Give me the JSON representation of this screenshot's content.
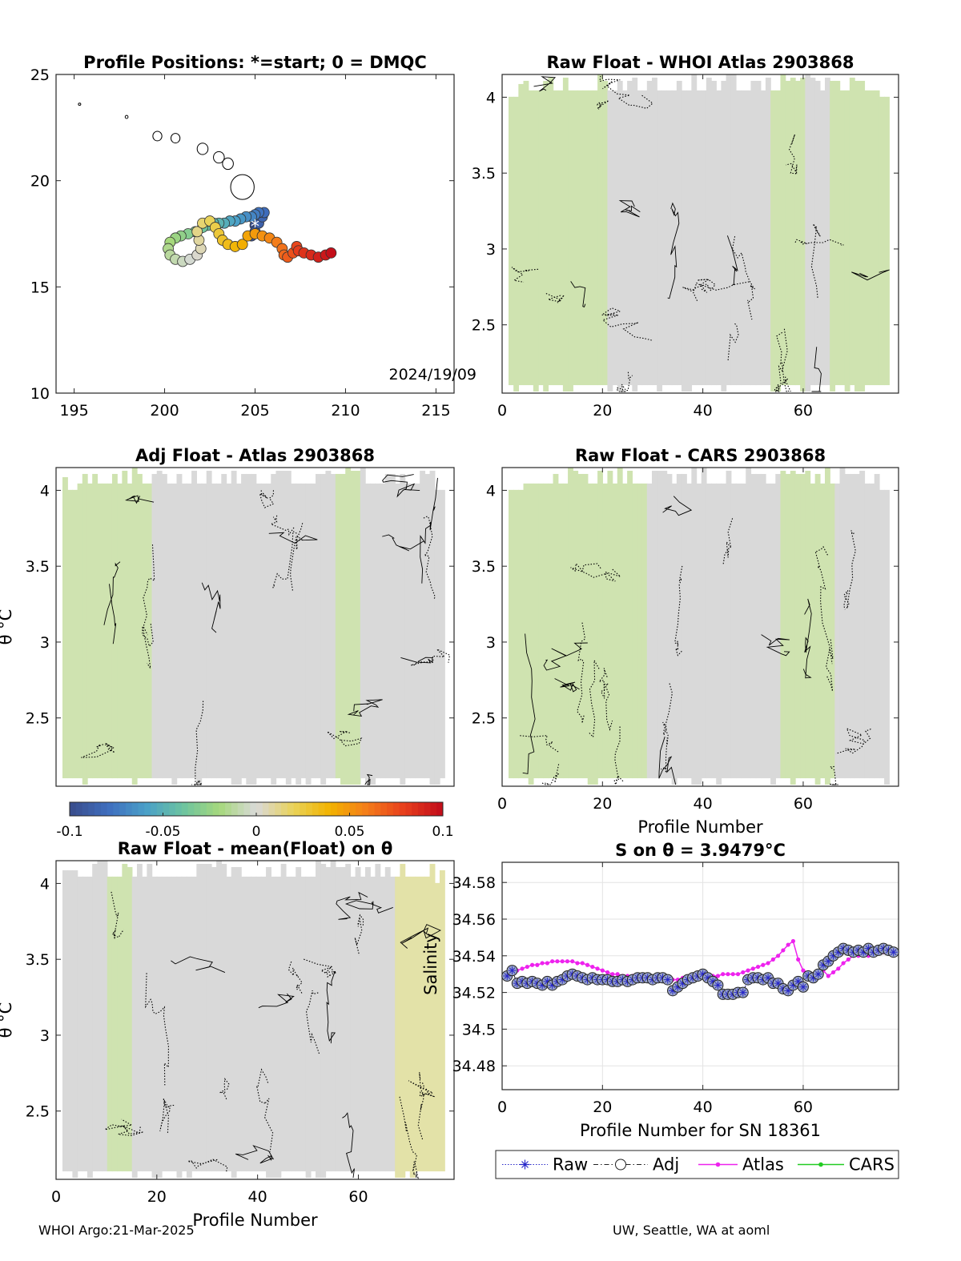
{
  "footer": {
    "left": "WHOI Argo:21-Mar-2025",
    "right": "UW, Seattle, WA at aoml"
  },
  "colors": {
    "colormap": [
      "#3a4f8f",
      "#3f6fbf",
      "#4aa0c8",
      "#6cc3a0",
      "#a6d87c",
      "#d9d9d9",
      "#e9d35a",
      "#f2b300",
      "#f47d1a",
      "#e8401c",
      "#c40f1a"
    ],
    "background_gray": "#d9d9d9"
  },
  "chart_data": [
    {
      "id": "map",
      "type": "scatter",
      "title": "Profile Positions: *=start; 0 = DMQC",
      "xlim": [
        194,
        216
      ],
      "ylim": [
        10,
        25
      ],
      "xticks": [
        195,
        200,
        205,
        210,
        215
      ],
      "yticks": [
        10,
        15,
        20,
        25
      ],
      "annotation": "2024/19/09",
      "track": [
        {
          "x": 205.0,
          "y": 17.9
        },
        {
          "x": 204.8,
          "y": 17.4
        },
        {
          "x": 205.0,
          "y": 17.6
        },
        {
          "x": 205.2,
          "y": 18.0
        },
        {
          "x": 205.4,
          "y": 18.3
        },
        {
          "x": 205.5,
          "y": 18.5
        },
        {
          "x": 205.2,
          "y": 18.5
        },
        {
          "x": 205.0,
          "y": 18.4
        },
        {
          "x": 204.8,
          "y": 18.3
        },
        {
          "x": 204.5,
          "y": 18.3
        },
        {
          "x": 204.2,
          "y": 18.2
        },
        {
          "x": 203.9,
          "y": 18.1
        },
        {
          "x": 203.6,
          "y": 18.1
        },
        {
          "x": 203.3,
          "y": 18.0
        },
        {
          "x": 203.0,
          "y": 18.0
        },
        {
          "x": 202.7,
          "y": 18.0
        },
        {
          "x": 202.4,
          "y": 17.9
        },
        {
          "x": 202.1,
          "y": 17.8
        },
        {
          "x": 201.7,
          "y": 17.6
        },
        {
          "x": 201.3,
          "y": 17.5
        },
        {
          "x": 200.9,
          "y": 17.4
        },
        {
          "x": 200.6,
          "y": 17.3
        },
        {
          "x": 200.3,
          "y": 17.1
        },
        {
          "x": 200.2,
          "y": 16.8
        },
        {
          "x": 200.3,
          "y": 16.5
        },
        {
          "x": 200.6,
          "y": 16.3
        },
        {
          "x": 201.0,
          "y": 16.2
        },
        {
          "x": 201.4,
          "y": 16.3
        },
        {
          "x": 201.8,
          "y": 16.5
        },
        {
          "x": 202.0,
          "y": 16.8
        },
        {
          "x": 201.9,
          "y": 17.2
        },
        {
          "x": 201.8,
          "y": 17.6
        },
        {
          "x": 202.1,
          "y": 18.0
        },
        {
          "x": 202.5,
          "y": 18.1
        },
        {
          "x": 202.8,
          "y": 17.8
        },
        {
          "x": 203.0,
          "y": 17.5
        },
        {
          "x": 203.2,
          "y": 17.2
        },
        {
          "x": 203.5,
          "y": 17.0
        },
        {
          "x": 203.9,
          "y": 16.9
        },
        {
          "x": 204.3,
          "y": 17.0
        },
        {
          "x": 204.6,
          "y": 17.4
        },
        {
          "x": 205.0,
          "y": 17.5
        },
        {
          "x": 205.4,
          "y": 17.4
        },
        {
          "x": 205.8,
          "y": 17.3
        },
        {
          "x": 206.2,
          "y": 17.1
        },
        {
          "x": 206.5,
          "y": 16.8
        },
        {
          "x": 206.6,
          "y": 16.5
        },
        {
          "x": 206.8,
          "y": 16.4
        },
        {
          "x": 207.1,
          "y": 16.6
        },
        {
          "x": 207.3,
          "y": 16.9
        },
        {
          "x": 207.4,
          "y": 16.7
        },
        {
          "x": 207.7,
          "y": 16.6
        },
        {
          "x": 208.1,
          "y": 16.5
        },
        {
          "x": 208.5,
          "y": 16.4
        },
        {
          "x": 208.9,
          "y": 16.5
        },
        {
          "x": 209.2,
          "y": 16.6
        }
      ],
      "islands": [
        {
          "x": 195.3,
          "y": 23.6,
          "r": 0.06
        },
        {
          "x": 197.9,
          "y": 23.0,
          "r": 0.08
        },
        {
          "x": 199.6,
          "y": 22.1,
          "r": 0.25
        },
        {
          "x": 200.6,
          "y": 22.0,
          "r": 0.25
        },
        {
          "x": 202.1,
          "y": 21.5,
          "r": 0.3
        },
        {
          "x": 203.0,
          "y": 21.1,
          "r": 0.3
        },
        {
          "x": 203.5,
          "y": 20.8,
          "r": 0.3
        },
        {
          "x": 204.3,
          "y": 19.7,
          "r": 0.65
        }
      ]
    },
    {
      "id": "whoi",
      "type": "heatmap",
      "title": "Raw Float - WHOI Atlas  2903868",
      "xlim": [
        0,
        79
      ],
      "ylim": [
        2.05,
        4.15
      ],
      "xticks": [
        0,
        20,
        40,
        60
      ],
      "yticks": [
        2.5,
        3,
        3.5,
        4
      ]
    },
    {
      "id": "adj",
      "type": "heatmap",
      "title": "Adj Float - Atlas  2903868",
      "ylabel": "θ °C",
      "xlim": [
        0,
        79
      ],
      "ylim": [
        2.05,
        4.15
      ],
      "yticks": [
        2.5,
        3,
        3.5,
        4
      ]
    },
    {
      "id": "cars",
      "type": "heatmap",
      "title": "Raw Float - CARS  2903868",
      "xlabel": "Profile Number",
      "xlim": [
        0,
        79
      ],
      "ylim": [
        2.05,
        4.15
      ],
      "xticks": [
        0,
        20,
        40,
        60
      ],
      "yticks": [
        2.5,
        3,
        3.5,
        4
      ]
    },
    {
      "id": "colorbar",
      "type": "heatmap",
      "clim": [
        -0.1,
        0.1
      ],
      "ticks": [
        -0.1,
        -0.05,
        0,
        0.05,
        0.1
      ],
      "tick_labels": [
        "-0.1",
        "-0.05",
        "0",
        "0.05",
        "0.1"
      ]
    },
    {
      "id": "mean",
      "type": "heatmap",
      "title": "Raw Float - mean(Float) on θ",
      "ylabel": "θ °C",
      "xlabel": "Profile Number",
      "xlim": [
        0,
        79
      ],
      "ylim": [
        2.05,
        4.15
      ],
      "xticks": [
        0,
        20,
        40,
        60
      ],
      "yticks": [
        2.5,
        3,
        3.5,
        4
      ]
    },
    {
      "id": "salinity",
      "type": "line",
      "title": "S on θ = 3.9479°C",
      "xlabel": "Profile Number for SN 18361",
      "ylabel": "Salinity",
      "xlim": [
        0,
        79
      ],
      "ylim": [
        34.467,
        34.591
      ],
      "xticks": [
        0,
        20,
        40,
        60
      ],
      "yticks": [
        34.48,
        34.5,
        34.52,
        34.54,
        34.56,
        34.58
      ],
      "ytick_labels": [
        "34.48",
        "34.5",
        "34.52",
        "34.54",
        "34.56",
        "34.58"
      ],
      "grid": true,
      "legend_position": "bottom",
      "x": [
        1,
        2,
        3,
        4,
        5,
        6,
        7,
        8,
        9,
        10,
        11,
        12,
        13,
        14,
        15,
        16,
        17,
        18,
        19,
        20,
        21,
        22,
        23,
        24,
        25,
        26,
        27,
        28,
        29,
        30,
        31,
        32,
        33,
        34,
        35,
        36,
        37,
        38,
        39,
        40,
        41,
        42,
        43,
        44,
        45,
        46,
        47,
        48,
        49,
        50,
        51,
        52,
        53,
        54,
        55,
        56,
        57,
        58,
        59,
        60,
        61,
        62,
        63,
        64,
        65,
        66,
        67,
        68,
        69,
        70,
        71,
        72,
        73,
        74,
        75,
        76,
        77,
        78
      ],
      "series": [
        {
          "name": "Raw",
          "color": "#2828c8",
          "values": [
            34.529,
            34.532,
            34.525,
            34.526,
            34.525,
            34.526,
            34.525,
            34.524,
            34.526,
            34.524,
            34.526,
            34.527,
            34.529,
            34.53,
            34.529,
            34.528,
            34.527,
            34.528,
            34.527,
            34.527,
            34.527,
            34.526,
            34.526,
            34.527,
            34.526,
            34.527,
            34.528,
            34.528,
            34.528,
            34.527,
            34.528,
            34.528,
            34.527,
            34.521,
            34.523,
            34.525,
            34.527,
            34.528,
            34.529,
            34.53,
            34.528,
            34.526,
            34.524,
            34.519,
            34.519,
            34.519,
            34.52,
            34.52,
            34.527,
            34.528,
            34.528,
            34.527,
            34.528,
            34.525,
            34.525,
            34.522,
            34.521,
            34.524,
            34.526,
            34.523,
            34.529,
            34.528,
            34.53,
            34.535,
            34.537,
            34.54,
            34.542,
            34.544,
            34.543,
            34.542,
            34.543,
            34.542,
            34.544,
            34.542,
            34.543,
            34.544,
            34.543,
            34.542
          ]
        },
        {
          "name": "Adj",
          "color": "#222222",
          "values": [
            34.529,
            34.532,
            34.525,
            34.526,
            34.525,
            34.526,
            34.525,
            34.524,
            34.526,
            34.524,
            34.526,
            34.527,
            34.529,
            34.53,
            34.529,
            34.528,
            34.527,
            34.528,
            34.527,
            34.527,
            34.527,
            34.526,
            34.526,
            34.527,
            34.526,
            34.527,
            34.528,
            34.528,
            34.528,
            34.527,
            34.528,
            34.528,
            34.527,
            34.521,
            34.523,
            34.525,
            34.527,
            34.528,
            34.529,
            34.53,
            34.528,
            34.526,
            34.524,
            34.519,
            34.519,
            34.519,
            34.52,
            34.52,
            34.527,
            34.528,
            34.528,
            34.527,
            34.528,
            34.525,
            34.525,
            34.522,
            34.521,
            34.524,
            34.526,
            34.523,
            34.529,
            34.528,
            34.53,
            34.535,
            34.537,
            34.54,
            34.542,
            34.544,
            34.543,
            34.542,
            34.543,
            34.542,
            34.544,
            34.542,
            34.543,
            34.544,
            34.543,
            34.542
          ]
        },
        {
          "name": "Atlas",
          "color": "#ee22ee",
          "values": [
            34.53,
            34.531,
            34.532,
            34.533,
            34.534,
            34.535,
            34.535,
            34.536,
            34.536,
            34.537,
            34.537,
            34.537,
            34.537,
            34.537,
            34.536,
            34.536,
            34.535,
            34.534,
            34.533,
            34.532,
            34.531,
            34.53,
            34.53,
            34.529,
            34.529,
            34.529,
            34.529,
            34.529,
            34.529,
            34.528,
            34.528,
            34.528,
            34.527,
            34.527,
            34.527,
            34.528,
            34.528,
            34.528,
            34.529,
            34.529,
            34.529,
            34.529,
            34.529,
            34.53,
            34.53,
            34.53,
            34.53,
            34.531,
            34.532,
            34.533,
            34.534,
            34.535,
            34.536,
            34.538,
            34.54,
            34.543,
            34.546,
            34.548,
            34.538,
            34.532,
            34.531,
            34.53,
            34.531,
            34.532,
            34.529,
            34.531,
            34.533,
            34.536,
            34.538,
            34.54,
            34.54,
            34.541,
            34.54,
            34.541,
            34.542,
            34.542,
            34.543,
            34.542
          ]
        },
        {
          "name": "CARS",
          "color": "#22cc22",
          "values": [
            null,
            null,
            null,
            null,
            null,
            null,
            null,
            null,
            null,
            null,
            null,
            null,
            null,
            null,
            null,
            null,
            null,
            null,
            null,
            null,
            null,
            null,
            null,
            null,
            null,
            null,
            null,
            null,
            null,
            null,
            null,
            null,
            null,
            null,
            null,
            null,
            null,
            null,
            null,
            null,
            null,
            null,
            null,
            null,
            null,
            null,
            null,
            null,
            null,
            null,
            null,
            null,
            null,
            null,
            null,
            null,
            null,
            null,
            null,
            null,
            null,
            null,
            null,
            null,
            null,
            34.541,
            34.543,
            34.544,
            34.545,
            34.543,
            34.544,
            34.542,
            34.545,
            34.543,
            34.544,
            34.545,
            34.544,
            34.543
          ]
        }
      ]
    }
  ]
}
